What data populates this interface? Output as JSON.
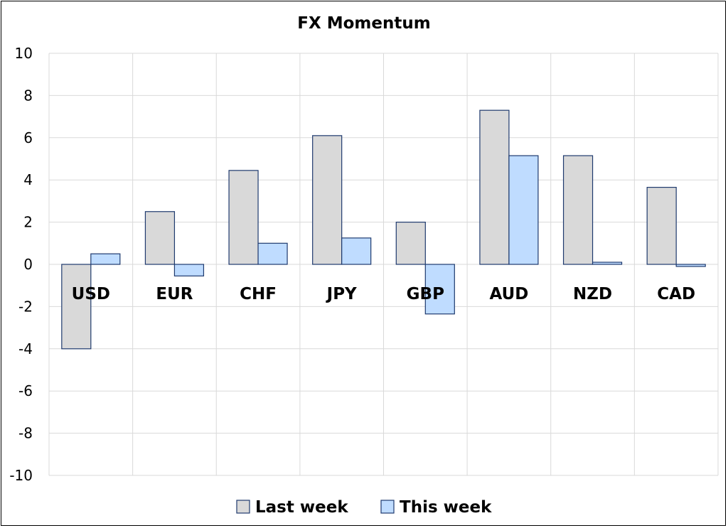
{
  "chart_data": {
    "type": "bar",
    "title": "FX Momentum",
    "categories": [
      "USD",
      "EUR",
      "CHF",
      "JPY",
      "GBP",
      "AUD",
      "NZD",
      "CAD"
    ],
    "series": [
      {
        "name": "Last week",
        "color": "#d9d9d9",
        "values": [
          -4.0,
          2.5,
          4.45,
          6.1,
          2.0,
          7.3,
          5.15,
          3.65
        ]
      },
      {
        "name": "This week",
        "color": "#bfdcff",
        "values": [
          0.5,
          -0.55,
          1.0,
          1.25,
          -2.35,
          5.15,
          0.1,
          -0.1
        ]
      }
    ],
    "bar_stroke": "#1f3a6e",
    "ylim": [
      -10,
      10
    ],
    "yticks": [
      "10",
      "8",
      "6",
      "4",
      "2",
      "0",
      "-2",
      "-4",
      "-6",
      "-8",
      "-10"
    ],
    "xlabel": "",
    "ylabel": "",
    "grid": true,
    "legend_position": "bottom"
  }
}
